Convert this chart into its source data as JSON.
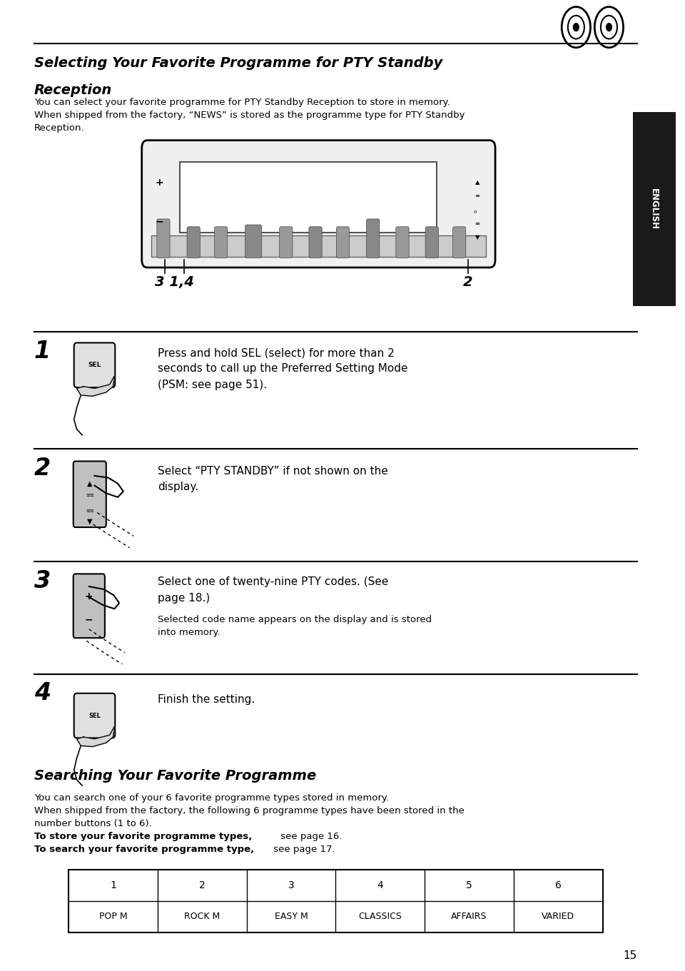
{
  "bg_color": "#ffffff",
  "table_headers": [
    "1",
    "2",
    "3",
    "4",
    "5",
    "6"
  ],
  "table_values": [
    "POP M",
    "ROCK M",
    "EASY M",
    "CLASSICS",
    "AFFAIRS",
    "VARIED"
  ],
  "page_number": "15"
}
